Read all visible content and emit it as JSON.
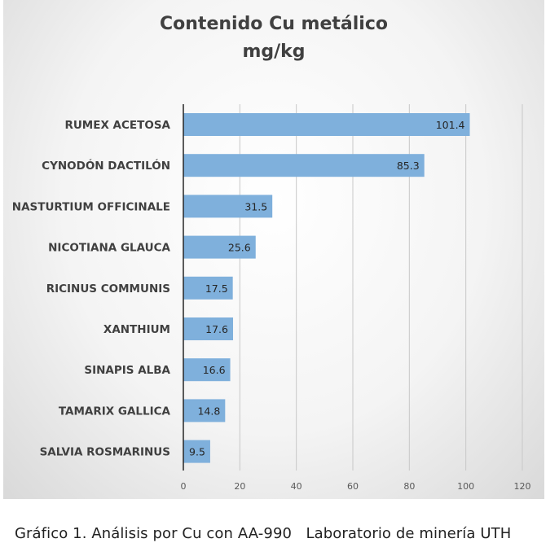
{
  "chart_data": {
    "type": "bar",
    "orientation": "horizontal",
    "title": "Contenido Cu metálico",
    "subtitle": "mg/kg",
    "categories": [
      "RUMEX ACETOSA",
      "CYNODÓN DACTILÓN",
      "NASTURTIUM OFFICINALE",
      "NICOTIANA GLAUCA",
      "RICINUS COMMUNIS",
      "XANTHIUM",
      "SINAPIS ALBA",
      "TAMARIX GALLICA",
      "SALVIA ROSMARINUS"
    ],
    "values": [
      101.4,
      85.3,
      31.5,
      25.6,
      17.5,
      17.6,
      16.6,
      14.8,
      9.5
    ],
    "value_labels": [
      "101.4",
      "85.3",
      "31.5",
      "25.6",
      "17.5",
      "17.6",
      "16.6",
      "14.8",
      "9.5"
    ],
    "xlim": [
      0,
      120
    ],
    "x_ticks": [
      0,
      20,
      40,
      60,
      80,
      100,
      120
    ],
    "grid": "vertical",
    "legend": "none",
    "bar_color": "#7fb0dc"
  },
  "caption": "Gráfico 1. Análisis por Cu con AA-990   Laboratorio de minería UTH"
}
